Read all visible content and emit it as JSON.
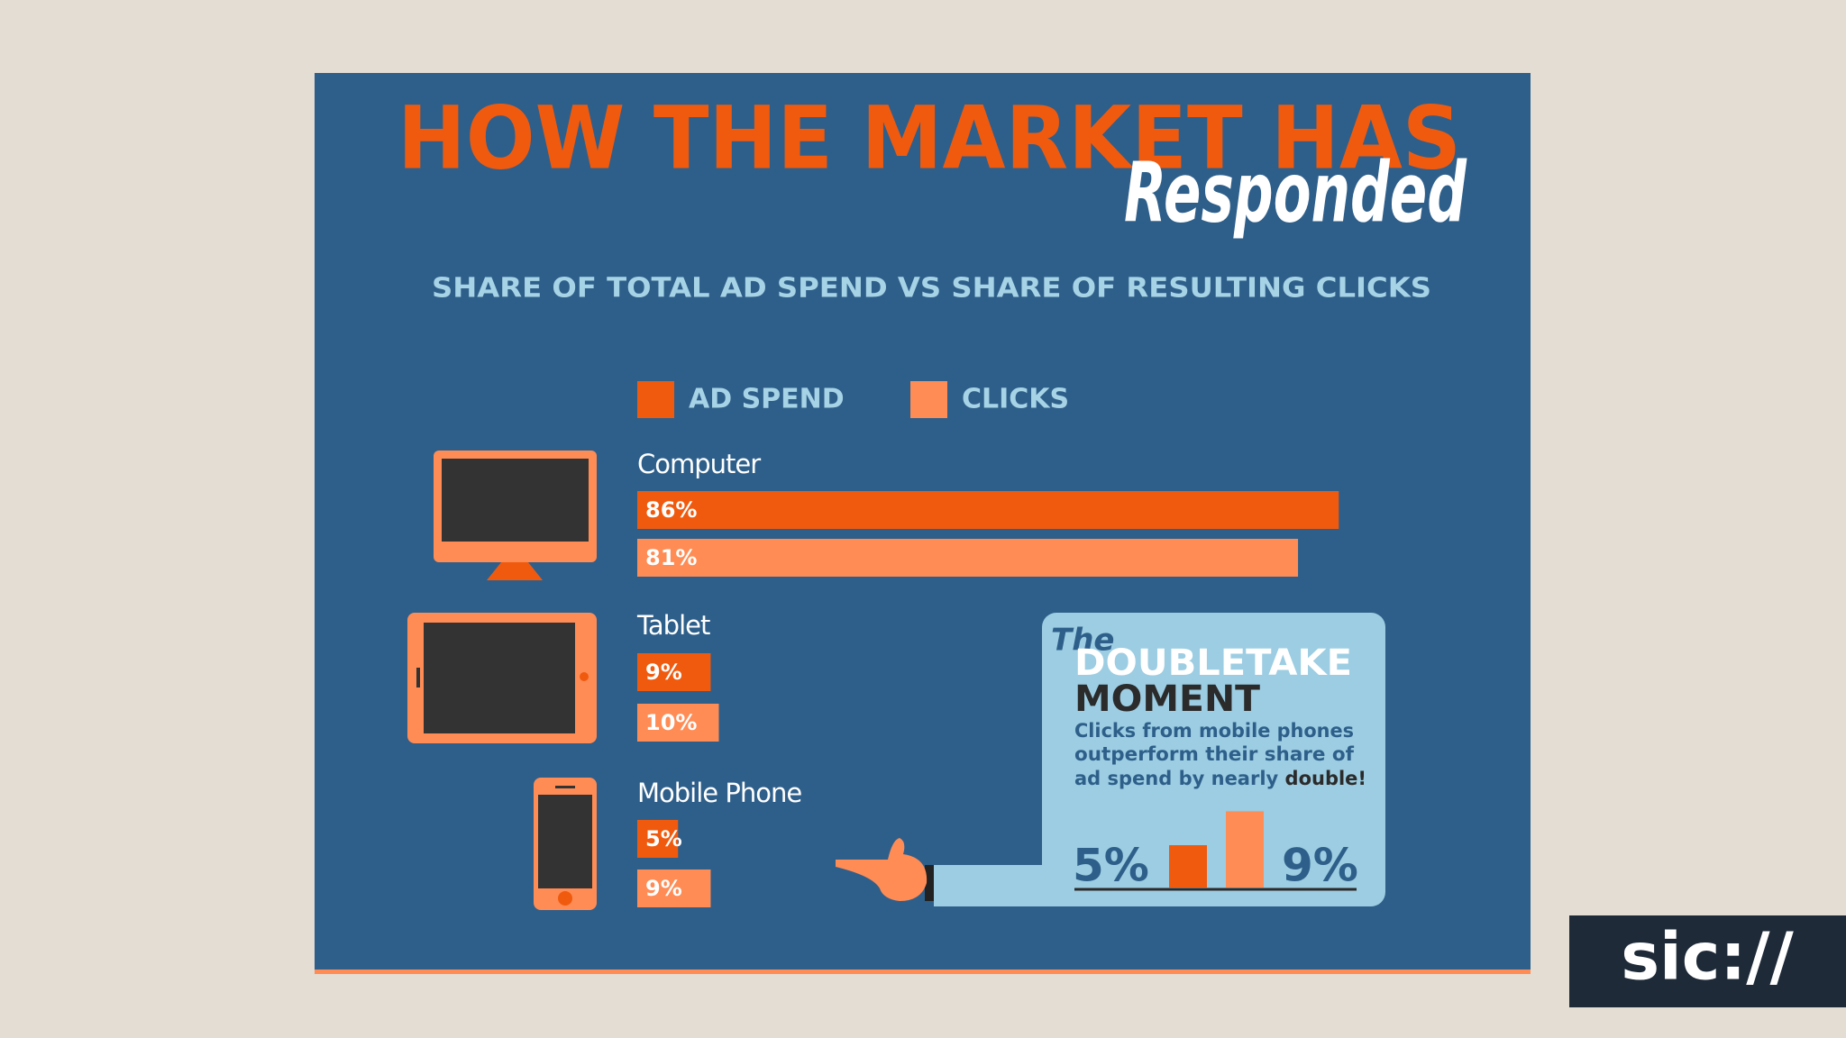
{
  "chart_data": {
    "type": "hbar",
    "title": "HOW THE MARKET HAS",
    "title_script": "Responded",
    "subtitle": "SHARE OF TOTAL AD SPEND VS SHARE OF RESULTING CLICKS",
    "categories": [
      "Computer",
      "Tablet",
      "Mobile Phone"
    ],
    "series": [
      {
        "name": "AD SPEND",
        "color": "#f05a0e",
        "values": [
          86,
          9,
          5
        ],
        "value_labels": [
          "86%",
          "9%",
          "5%"
        ]
      },
      {
        "name": "CLICKS",
        "color": "#ff8c55",
        "values": [
          81,
          10,
          9
        ],
        "value_labels": [
          "81%",
          "10%",
          "9%"
        ]
      }
    ]
  },
  "callout": {
    "kicker": "The",
    "title": "DOUBLETAKE",
    "title2": "MOMENT",
    "lines": [
      "Clicks from mobile phones",
      "outperform their share of",
      "ad spend by nearly"
    ],
    "emphasis": "double!",
    "values": [
      5,
      9
    ],
    "value_labels": [
      "5%",
      "9%"
    ]
  },
  "logo": "sic://"
}
